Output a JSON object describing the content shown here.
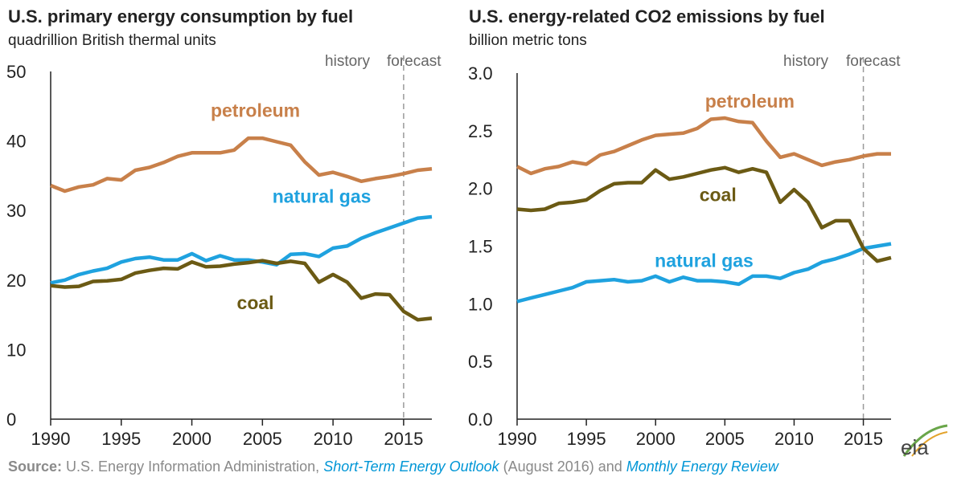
{
  "colors": {
    "petroleum": "#c8804a",
    "natural_gas": "#1fa2df",
    "coal": "#6b5a14",
    "axis": "#222222",
    "forecast_divider": "#9a9a9a",
    "source_text": "#8a8a8a",
    "link": "#0096d6"
  },
  "chart_data": [
    {
      "type": "line",
      "title": "U.S. primary energy consumption by fuel",
      "subtitle": "quadrillion British thermal units",
      "history_label": "history",
      "forecast_label": "forecast",
      "forecast_start": 2015,
      "xlim": [
        1990,
        2017
      ],
      "ylim": [
        0,
        50
      ],
      "x_ticks": [
        1990,
        1995,
        2000,
        2005,
        2010,
        2015
      ],
      "x_tick_labels": [
        "1990",
        "1995",
        "2000",
        "2005",
        "2010",
        "2015"
      ],
      "y_ticks": [
        0,
        10,
        20,
        30,
        40,
        50
      ],
      "y_tick_labels": [
        "0",
        "10",
        "20",
        "30",
        "40",
        "50"
      ],
      "grid": false,
      "x": [
        1990,
        1991,
        1992,
        1993,
        1994,
        1995,
        1996,
        1997,
        1998,
        1999,
        2000,
        2001,
        2002,
        2003,
        2004,
        2005,
        2006,
        2007,
        2008,
        2009,
        2010,
        2011,
        2012,
        2013,
        2014,
        2015,
        2016,
        2017
      ],
      "series": [
        {
          "name": "petroleum",
          "color_key": "petroleum",
          "label_x": 2004.5,
          "label_y": 43.5,
          "values": [
            33.6,
            32.8,
            33.4,
            33.7,
            34.6,
            34.4,
            35.8,
            36.2,
            36.9,
            37.8,
            38.3,
            38.3,
            38.3,
            38.7,
            40.4,
            40.4,
            39.9,
            39.4,
            37.0,
            35.1,
            35.5,
            34.9,
            34.2,
            34.6,
            34.9,
            35.3,
            35.8,
            36.0
          ]
        },
        {
          "name": "natural gas",
          "color_key": "natural_gas",
          "label_x": 2009.2,
          "label_y": 31.1,
          "values": [
            19.6,
            20.0,
            20.8,
            21.3,
            21.7,
            22.6,
            23.1,
            23.3,
            22.9,
            22.9,
            23.8,
            22.8,
            23.5,
            22.9,
            22.9,
            22.6,
            22.2,
            23.7,
            23.8,
            23.4,
            24.6,
            24.9,
            26.0,
            26.8,
            27.5,
            28.2,
            28.9,
            29.1
          ]
        },
        {
          "name": "coal",
          "color_key": "coal",
          "label_x": 2004.5,
          "label_y": 15.8,
          "values": [
            19.2,
            19.0,
            19.1,
            19.8,
            19.9,
            20.1,
            21.0,
            21.4,
            21.7,
            21.6,
            22.6,
            21.9,
            22.0,
            22.3,
            22.5,
            22.8,
            22.4,
            22.7,
            22.4,
            19.7,
            20.8,
            19.7,
            17.4,
            18.0,
            17.9,
            15.5,
            14.3,
            14.5
          ]
        }
      ]
    },
    {
      "type": "line",
      "title": "U.S. energy-related CO2 emissions by fuel",
      "subtitle": "billion metric tons",
      "history_label": "history",
      "forecast_label": "forecast",
      "forecast_start": 2015,
      "xlim": [
        1990,
        2017
      ],
      "ylim": [
        0,
        3
      ],
      "x_ticks": [
        1990,
        1995,
        2000,
        2005,
        2010,
        2015
      ],
      "x_tick_labels": [
        "1990",
        "1995",
        "2000",
        "2005",
        "2010",
        "2015"
      ],
      "y_ticks": [
        0,
        0.5,
        1,
        1.5,
        2,
        2.5,
        3
      ],
      "y_tick_labels": [
        "0.0",
        "0.5",
        "1.0",
        "1.5",
        "2.0",
        "2.5",
        "3.0"
      ],
      "grid": false,
      "x": [
        1990,
        1991,
        1992,
        1993,
        1994,
        1995,
        1996,
        1997,
        1998,
        1999,
        2000,
        2001,
        2002,
        2003,
        2004,
        2005,
        2006,
        2007,
        2008,
        2009,
        2010,
        2011,
        2012,
        2013,
        2014,
        2015,
        2016,
        2017
      ],
      "series": [
        {
          "name": "petroleum",
          "color_key": "petroleum",
          "label_x": 2006.8,
          "label_y": 2.7,
          "values": [
            2.19,
            2.13,
            2.17,
            2.19,
            2.23,
            2.21,
            2.29,
            2.32,
            2.37,
            2.42,
            2.46,
            2.47,
            2.48,
            2.52,
            2.6,
            2.61,
            2.58,
            2.57,
            2.41,
            2.27,
            2.3,
            2.25,
            2.2,
            2.23,
            2.25,
            2.28,
            2.3,
            2.3
          ]
        },
        {
          "name": "natural gas",
          "color_key": "natural_gas",
          "label_x": 2003.5,
          "label_y": 1.32,
          "values": [
            1.02,
            1.05,
            1.08,
            1.11,
            1.14,
            1.19,
            1.2,
            1.21,
            1.19,
            1.2,
            1.24,
            1.19,
            1.23,
            1.2,
            1.2,
            1.19,
            1.17,
            1.24,
            1.24,
            1.22,
            1.27,
            1.3,
            1.36,
            1.39,
            1.43,
            1.48,
            1.5,
            1.52
          ]
        },
        {
          "name": "coal",
          "color_key": "coal",
          "label_x": 2004.5,
          "label_y": 1.89,
          "values": [
            1.82,
            1.81,
            1.82,
            1.87,
            1.88,
            1.9,
            1.98,
            2.04,
            2.05,
            2.05,
            2.16,
            2.08,
            2.1,
            2.13,
            2.16,
            2.18,
            2.14,
            2.17,
            2.14,
            1.88,
            1.99,
            1.88,
            1.66,
            1.72,
            1.72,
            1.48,
            1.37,
            1.4
          ]
        }
      ]
    }
  ],
  "source": {
    "prefix": "Source:",
    "text1": "U.S. Energy Information Administration,",
    "link1": "Short-Term Energy Outlook",
    "text2": "(August 2016) and",
    "link2": "Monthly Energy Review"
  },
  "logo": {
    "text": "eia",
    "icon": "eia-logo"
  }
}
